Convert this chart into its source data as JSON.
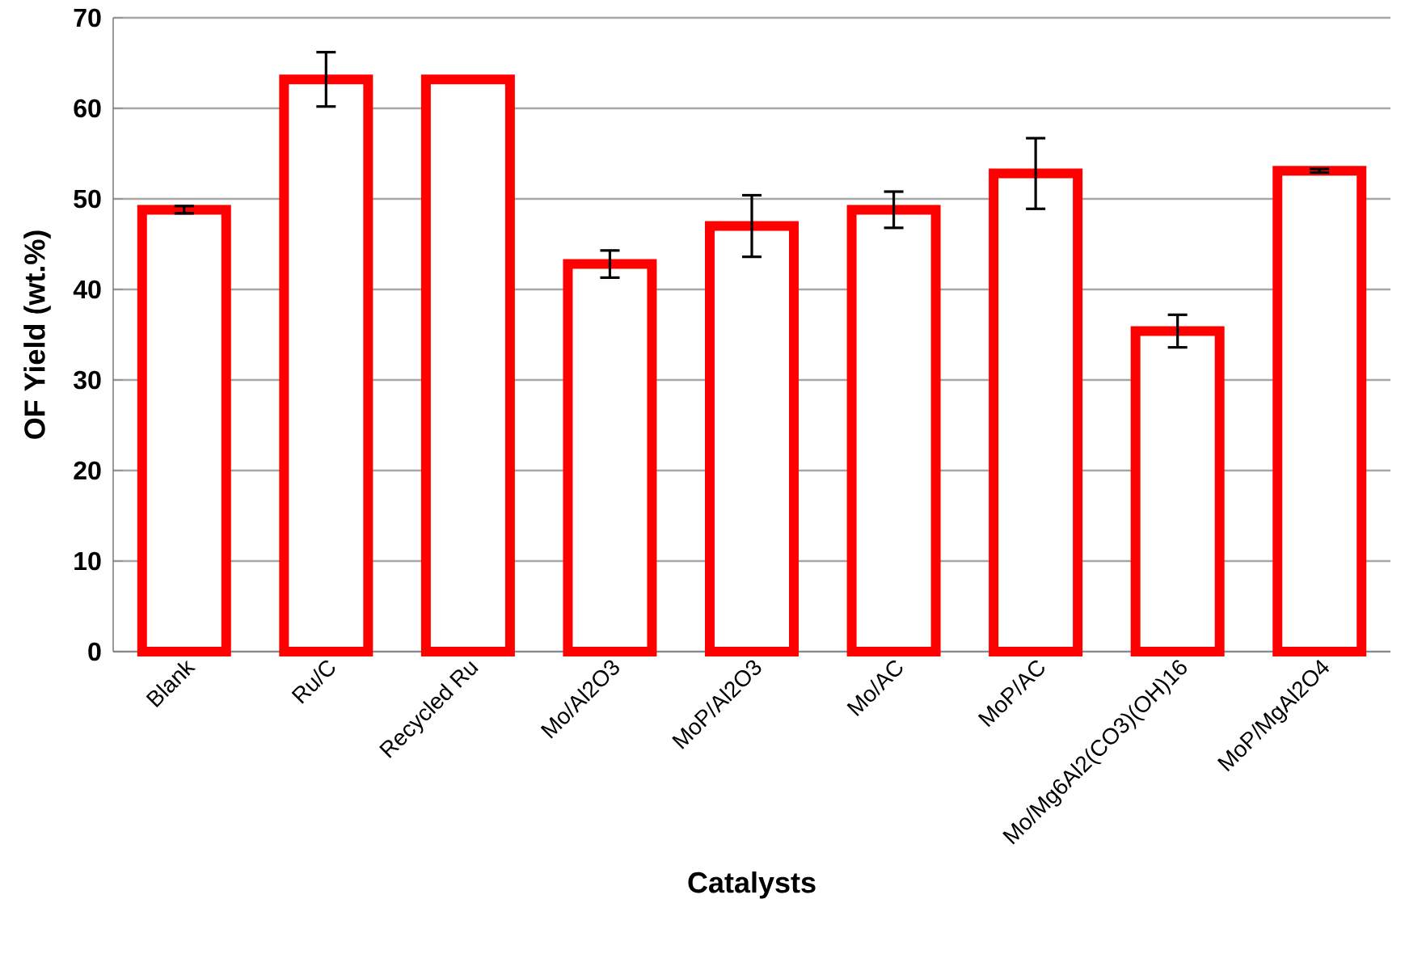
{
  "chart_data": {
    "type": "bar",
    "xlabel": "Catalysts",
    "ylabel": "OF Yield (wt.%)",
    "categories": [
      "Blank",
      "Ru/C",
      "Recycled Ru",
      "Mo/Al2O3",
      "MoP/Al2O3",
      "Mo/AC",
      "MoP/AC",
      "Mo/Mg6Al2(CO3)(OH)16",
      "MoP/MgAl2O4"
    ],
    "values": [
      48.8,
      63.2,
      63.2,
      42.8,
      47.0,
      48.8,
      52.8,
      35.4,
      53.1
    ],
    "errors": [
      0.4,
      3.0,
      null,
      1.5,
      3.4,
      2.0,
      3.9,
      1.8,
      0.2
    ],
    "color": "#ff0000",
    "ylim": [
      0,
      70
    ],
    "yticks": [
      0,
      10,
      20,
      30,
      40,
      50,
      60,
      70
    ],
    "grid": "y"
  }
}
